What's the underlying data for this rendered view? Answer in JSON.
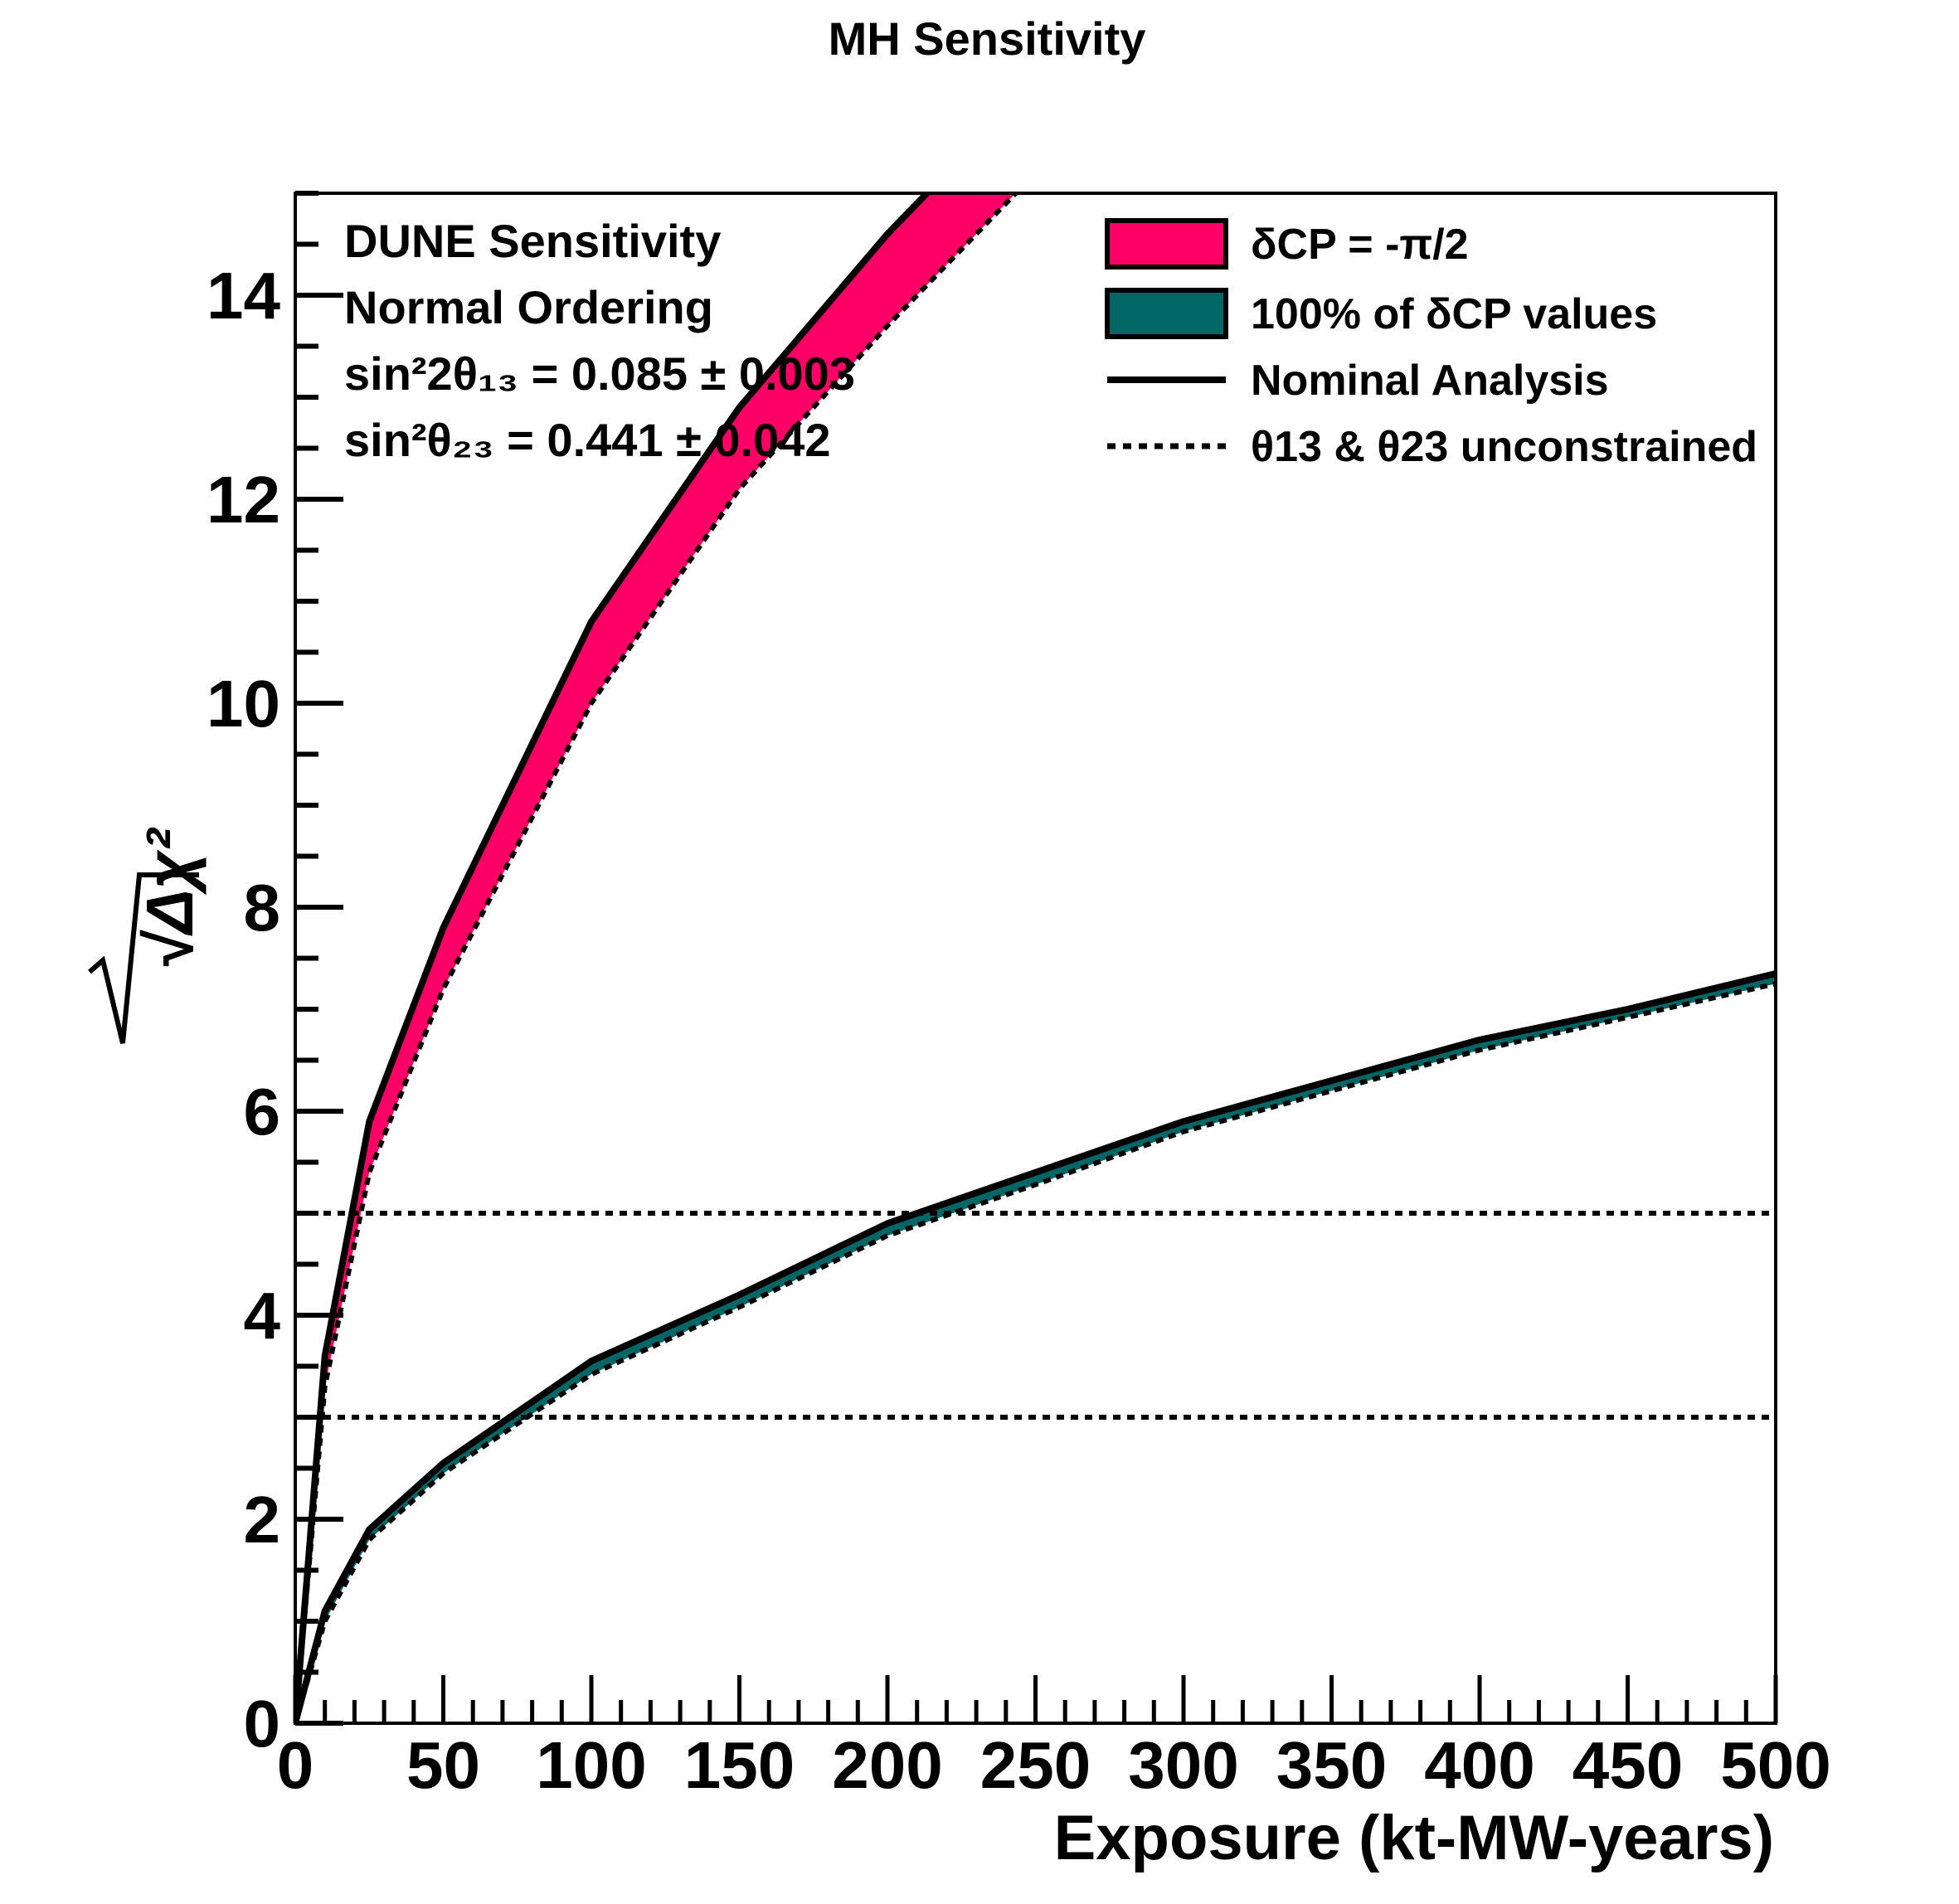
{
  "chart_data": {
    "type": "line",
    "title": "MH Sensitivity",
    "xlabel": "Exposure (kt-MW-years)",
    "ylabel": "√Δχ²",
    "xlim": [
      0,
      500
    ],
    "ylim": [
      0,
      15
    ],
    "grid": false,
    "xticks": [
      "0",
      "50",
      "100",
      "150",
      "200",
      "250",
      "300",
      "350",
      "400",
      "450",
      "500"
    ],
    "yticks": [
      "0",
      "2",
      "4",
      "6",
      "8",
      "10",
      "12",
      "14"
    ],
    "annotations": [
      "DUNE Sensitivity",
      "Normal Ordering",
      "sin²2θ₁₃ = 0.085 ± 0.003",
      "sin²θ₂₃ = 0.441 ± 0.042"
    ],
    "legend": {
      "placement": "top-right",
      "entries": [
        {
          "label": "δCP = -π/2",
          "style": "filled band",
          "color": "#ff0066"
        },
        {
          "label": "100% of δCP values",
          "style": "filled band",
          "color": "#006666"
        },
        {
          "label": "Nominal Analysis",
          "style": "solid line",
          "color": "#000000"
        },
        {
          "label": "θ13 & θ23 unconstrained",
          "style": "dotted line",
          "color": "#000000"
        }
      ]
    },
    "horizontal_lines": [
      {
        "y": 5,
        "style": "dotted"
      },
      {
        "y": 3,
        "style": "dotted"
      }
    ],
    "bands": [
      {
        "name": "δCP = -π/2",
        "color": "#ff0066",
        "x": [
          0,
          10,
          25,
          50,
          100,
          150,
          200,
          250
        ],
        "upper": [
          0,
          3.6,
          5.9,
          7.8,
          10.8,
          12.9,
          14.6,
          16.1
        ],
        "lower": [
          0,
          3.3,
          5.4,
          7.2,
          10.0,
          12.1,
          13.7,
          15.2
        ]
      },
      {
        "name": "100% of δCP values",
        "color": "#006666",
        "x": [
          0,
          10,
          25,
          50,
          100,
          150,
          200,
          250,
          300,
          350,
          400,
          450,
          500
        ],
        "upper": [
          0,
          1.1,
          1.9,
          2.55,
          3.55,
          4.2,
          4.9,
          5.4,
          5.9,
          6.3,
          6.7,
          7.0,
          7.35
        ],
        "lower": [
          0,
          1.0,
          1.8,
          2.45,
          3.42,
          4.08,
          4.78,
          5.28,
          5.8,
          6.2,
          6.6,
          6.92,
          7.25
        ]
      }
    ]
  }
}
